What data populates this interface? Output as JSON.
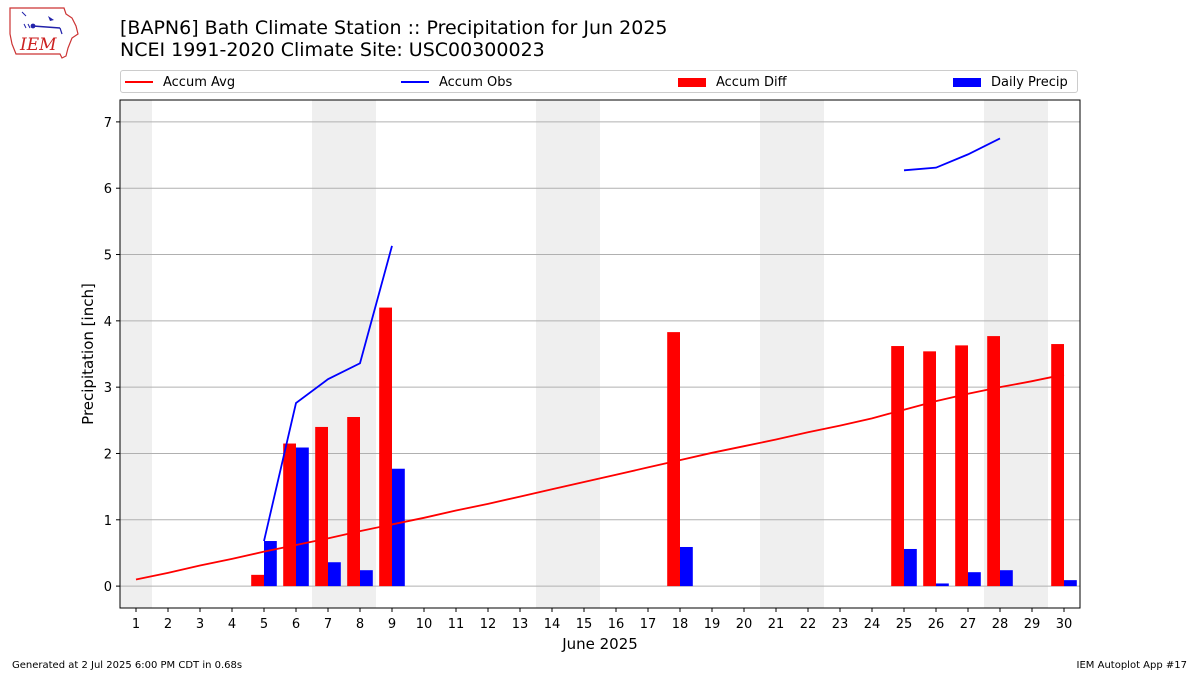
{
  "header": {
    "title_line1": "[BAPN6] Bath Climate Station :: Precipitation for Jun 2025",
    "title_line2": "NCEI 1991-2020 Climate Site: USC00300023",
    "logo_text": "IEM"
  },
  "footer": {
    "left": "Generated at 2 Jul 2025 6:00 PM CDT in 0.68s",
    "right": "IEM Autoplot App #17"
  },
  "chart_data": {
    "type": "bar",
    "xlabel": "June 2025",
    "ylabel": "Precipitation [inch]",
    "xlim": [
      0.5,
      30.5
    ],
    "ylim": [
      -0.33,
      7.33
    ],
    "yticks": [
      0,
      1,
      2,
      3,
      4,
      5,
      6,
      7
    ],
    "days": [
      1,
      2,
      3,
      4,
      5,
      6,
      7,
      8,
      9,
      10,
      11,
      12,
      13,
      14,
      15,
      16,
      17,
      18,
      19,
      20,
      21,
      22,
      23,
      24,
      25,
      26,
      27,
      28,
      29,
      30
    ],
    "weekend_bands": [
      [
        0.5,
        1.5
      ],
      [
        6.5,
        8.5
      ],
      [
        13.5,
        15.5
      ],
      [
        20.5,
        22.5
      ],
      [
        27.5,
        29.5
      ]
    ],
    "grid": "horizontal",
    "legend": [
      {
        "name": "Accum Avg",
        "kind": "line",
        "color": "#ff0000"
      },
      {
        "name": "Accum Obs",
        "kind": "line",
        "color": "#0000ff"
      },
      {
        "name": "Accum Diff",
        "kind": "bar",
        "color": "#ff0000"
      },
      {
        "name": "Daily Precip",
        "kind": "bar",
        "color": "#0000ff"
      }
    ],
    "series": [
      {
        "name": "Accum Avg",
        "type": "line",
        "color": "#ff0000",
        "x": [
          1,
          2,
          3,
          4,
          5,
          6,
          7,
          8,
          9,
          10,
          11,
          12,
          13,
          14,
          15,
          16,
          17,
          18,
          19,
          20,
          21,
          22,
          23,
          24,
          25,
          26,
          27,
          28,
          29,
          30
        ],
        "y": [
          0.1,
          0.2,
          0.31,
          0.41,
          0.52,
          0.62,
          0.72,
          0.83,
          0.93,
          1.03,
          1.14,
          1.24,
          1.35,
          1.46,
          1.57,
          1.68,
          1.79,
          1.9,
          2.01,
          2.11,
          2.21,
          2.32,
          2.42,
          2.53,
          2.66,
          2.79,
          2.9,
          3.0,
          3.09,
          3.19
        ]
      },
      {
        "name": "Accum Obs",
        "type": "line",
        "color": "#0000ff",
        "segments": [
          {
            "x": [
              5,
              6,
              7,
              8,
              9
            ],
            "y": [
              0.68,
              2.76,
              3.12,
              3.36,
              5.13
            ]
          },
          {
            "x": [
              25,
              26,
              27,
              28
            ],
            "y": [
              6.27,
              6.31,
              6.51,
              6.75
            ]
          }
        ]
      },
      {
        "name": "Accum Diff",
        "type": "bar",
        "color": "#ff0000",
        "x": [
          5,
          6,
          7,
          8,
          9,
          18,
          25,
          26,
          27,
          28,
          30
        ],
        "y": [
          0.17,
          2.15,
          2.4,
          2.55,
          4.2,
          3.83,
          3.62,
          3.54,
          3.63,
          3.77,
          3.65
        ]
      },
      {
        "name": "Daily Precip",
        "type": "bar",
        "color": "#0000ff",
        "x": [
          5,
          6,
          7,
          8,
          9,
          18,
          25,
          26,
          27,
          28,
          30
        ],
        "y": [
          0.68,
          2.09,
          0.36,
          0.24,
          1.77,
          0.59,
          0.56,
          0.04,
          0.21,
          0.24,
          0.09
        ]
      }
    ]
  }
}
